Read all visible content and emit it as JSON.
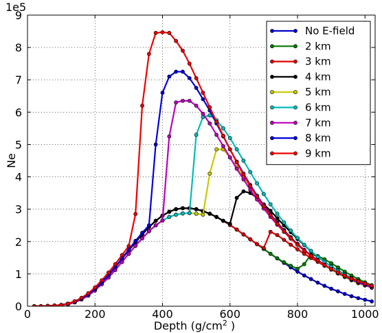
{
  "chart_data": {
    "type": "line",
    "xlabel_main": "Depth (g/cm",
    "xlabel_sup": "2",
    "xlabel_tail": " )",
    "ylabel": "Ne",
    "y_multiplier": "1e5",
    "xlim": [
      0,
      1030
    ],
    "ylim": [
      0,
      9
    ],
    "xticks": [
      0,
      200,
      400,
      600,
      800,
      1000
    ],
    "yticks": [
      0,
      1,
      2,
      3,
      4,
      5,
      6,
      7,
      8,
      9
    ],
    "grid": true,
    "legend_position": "top-right",
    "series": [
      {
        "name": "No E-field",
        "color": "#0000cc",
        "x": [
          20,
          40,
          60,
          80,
          100,
          120,
          140,
          160,
          180,
          200,
          220,
          240,
          260,
          280,
          300,
          320,
          340,
          360,
          380,
          400,
          420,
          440,
          460,
          480,
          500,
          520,
          540,
          560,
          580,
          600,
          620,
          640,
          660,
          680,
          700,
          720,
          740,
          760,
          780,
          800,
          820,
          840,
          860,
          880,
          900,
          920,
          940,
          960,
          980,
          1000,
          1020
        ],
        "y": [
          0.0,
          0.0,
          0.01,
          0.02,
          0.04,
          0.08,
          0.15,
          0.25,
          0.38,
          0.55,
          0.75,
          0.97,
          1.21,
          1.47,
          1.73,
          1.98,
          2.22,
          2.45,
          2.64,
          2.8,
          2.92,
          3.0,
          3.03,
          3.03,
          3.0,
          2.94,
          2.86,
          2.76,
          2.64,
          2.51,
          2.37,
          2.22,
          2.07,
          1.92,
          1.77,
          1.62,
          1.48,
          1.34,
          1.2,
          1.07,
          0.95,
          0.84,
          0.73,
          0.63,
          0.54,
          0.46,
          0.38,
          0.31,
          0.25,
          0.2,
          0.15
        ]
      },
      {
        "name": "2 km",
        "color": "#007a00",
        "x": [
          20,
          40,
          60,
          80,
          100,
          120,
          140,
          160,
          180,
          200,
          220,
          240,
          260,
          280,
          300,
          320,
          340,
          360,
          380,
          400,
          420,
          440,
          460,
          480,
          500,
          520,
          540,
          560,
          580,
          600,
          620,
          640,
          660,
          680,
          700,
          720,
          740,
          760,
          780,
          800,
          820,
          840,
          860,
          880,
          900,
          920,
          940,
          960,
          980,
          1000,
          1020
        ],
        "y": [
          0.0,
          0.0,
          0.01,
          0.02,
          0.04,
          0.08,
          0.15,
          0.25,
          0.38,
          0.55,
          0.75,
          0.97,
          1.21,
          1.47,
          1.73,
          1.98,
          2.22,
          2.45,
          2.64,
          2.8,
          2.92,
          3.0,
          3.03,
          3.03,
          3.0,
          2.94,
          2.86,
          2.76,
          2.64,
          2.51,
          2.37,
          2.22,
          2.07,
          1.92,
          1.77,
          1.62,
          1.48,
          1.36,
          1.25,
          1.16,
          1.3,
          1.6,
          1.55,
          1.45,
          1.33,
          1.2,
          1.07,
          0.95,
          0.84,
          0.74,
          0.65
        ]
      },
      {
        "name": "3 km",
        "color": "#dd0000",
        "x": [
          20,
          40,
          60,
          80,
          100,
          120,
          140,
          160,
          180,
          200,
          220,
          240,
          260,
          280,
          300,
          320,
          340,
          360,
          380,
          400,
          420,
          440,
          460,
          480,
          500,
          520,
          540,
          560,
          580,
          600,
          620,
          640,
          660,
          680,
          700,
          720,
          740,
          760,
          780,
          800,
          820,
          840,
          860,
          880,
          900,
          920,
          940,
          960,
          980,
          1000,
          1020
        ],
        "y": [
          0.0,
          0.0,
          0.01,
          0.02,
          0.04,
          0.08,
          0.15,
          0.25,
          0.38,
          0.55,
          0.75,
          0.97,
          1.21,
          1.47,
          1.73,
          1.98,
          2.22,
          2.45,
          2.64,
          2.8,
          2.92,
          3.0,
          3.03,
          3.03,
          3.0,
          2.94,
          2.86,
          2.76,
          2.64,
          2.51,
          2.37,
          2.22,
          2.07,
          1.92,
          1.8,
          2.3,
          2.2,
          2.05,
          1.9,
          1.76,
          1.62,
          1.49,
          1.37,
          1.25,
          1.14,
          1.03,
          0.93,
          0.84,
          0.75,
          0.67,
          0.6
        ]
      },
      {
        "name": "4 km",
        "color": "#000000",
        "x": [
          20,
          40,
          60,
          80,
          100,
          120,
          140,
          160,
          180,
          200,
          220,
          240,
          260,
          280,
          300,
          320,
          340,
          360,
          380,
          400,
          420,
          440,
          460,
          480,
          500,
          520,
          540,
          560,
          580,
          600,
          620,
          640,
          660,
          680,
          700,
          720,
          740,
          760,
          780,
          800,
          820,
          840,
          860,
          880,
          900,
          920,
          940,
          960,
          980,
          1000,
          1020
        ],
        "y": [
          0.0,
          0.0,
          0.01,
          0.02,
          0.04,
          0.08,
          0.15,
          0.25,
          0.38,
          0.55,
          0.75,
          0.97,
          1.21,
          1.47,
          1.73,
          1.98,
          2.22,
          2.45,
          2.64,
          2.8,
          2.92,
          3.0,
          3.03,
          3.03,
          3.0,
          2.94,
          2.86,
          2.76,
          2.64,
          2.55,
          3.35,
          3.55,
          3.5,
          3.35,
          3.15,
          2.95,
          2.72,
          2.5,
          2.29,
          2.08,
          1.89,
          1.7,
          1.53,
          1.37,
          1.23,
          1.1,
          0.98,
          0.87,
          0.78,
          0.69,
          0.62
        ]
      },
      {
        "name": "5 km",
        "color": "#c8c800",
        "x": [
          20,
          40,
          60,
          80,
          100,
          120,
          140,
          160,
          180,
          200,
          220,
          240,
          260,
          280,
          300,
          320,
          340,
          360,
          380,
          400,
          420,
          440,
          460,
          480,
          500,
          520,
          540,
          560,
          580,
          600,
          620,
          640,
          660,
          680,
          700,
          720,
          740,
          760,
          780,
          800,
          820,
          840,
          860,
          880,
          900,
          920,
          940,
          960,
          980,
          1000,
          1020
        ],
        "y": [
          0.0,
          0.0,
          0.0,
          0.01,
          0.03,
          0.06,
          0.12,
          0.21,
          0.33,
          0.49,
          0.68,
          0.89,
          1.12,
          1.37,
          1.62,
          1.87,
          2.1,
          2.32,
          2.5,
          2.65,
          2.76,
          2.83,
          2.87,
          2.88,
          2.86,
          2.83,
          4.1,
          4.85,
          4.85,
          4.6,
          4.3,
          4.0,
          3.7,
          3.4,
          3.12,
          2.85,
          2.6,
          2.36,
          2.14,
          1.93,
          1.74,
          1.57,
          1.41,
          1.26,
          1.13,
          1.01,
          0.9,
          0.8,
          0.71,
          0.64,
          0.57
        ]
      },
      {
        "name": "6 km",
        "color": "#00bbbb",
        "x": [
          20,
          40,
          60,
          80,
          100,
          120,
          140,
          160,
          180,
          200,
          220,
          240,
          260,
          280,
          300,
          320,
          340,
          360,
          380,
          400,
          420,
          440,
          460,
          480,
          500,
          520,
          540,
          560,
          580,
          600,
          620,
          640,
          660,
          680,
          700,
          720,
          740,
          760,
          780,
          800,
          820,
          840,
          860,
          880,
          900,
          920,
          940,
          960,
          980,
          1000,
          1020
        ],
        "y": [
          0.0,
          0.0,
          0.0,
          0.01,
          0.03,
          0.06,
          0.12,
          0.21,
          0.33,
          0.49,
          0.68,
          0.89,
          1.12,
          1.37,
          1.62,
          1.87,
          2.1,
          2.32,
          2.5,
          2.65,
          2.76,
          2.83,
          2.87,
          2.88,
          5.3,
          5.85,
          5.9,
          5.75,
          5.5,
          5.2,
          4.85,
          4.5,
          4.15,
          3.8,
          3.47,
          3.15,
          2.86,
          2.59,
          2.34,
          2.11,
          1.9,
          1.71,
          1.53,
          1.37,
          1.22,
          1.09,
          0.97,
          0.86,
          0.76,
          0.68,
          0.6
        ]
      },
      {
        "name": "7 km",
        "color": "#bb00bb",
        "x": [
          20,
          40,
          60,
          80,
          100,
          120,
          140,
          160,
          180,
          200,
          220,
          240,
          260,
          280,
          300,
          320,
          340,
          360,
          380,
          400,
          420,
          440,
          460,
          480,
          500,
          520,
          540,
          560,
          580,
          600,
          620,
          640,
          660,
          680,
          700,
          720,
          740,
          760,
          780,
          800,
          820,
          840,
          860,
          880,
          900,
          920,
          940,
          960,
          980,
          1000,
          1020
        ],
        "y": [
          0.0,
          0.0,
          0.0,
          0.01,
          0.03,
          0.06,
          0.12,
          0.21,
          0.33,
          0.49,
          0.68,
          0.89,
          1.12,
          1.37,
          1.62,
          1.87,
          2.1,
          2.32,
          2.5,
          2.65,
          5.25,
          6.3,
          6.35,
          6.35,
          6.2,
          5.95,
          5.65,
          5.3,
          4.95,
          4.6,
          4.25,
          3.92,
          3.6,
          3.3,
          3.02,
          2.76,
          2.52,
          2.3,
          2.09,
          1.9,
          1.73,
          1.57,
          1.42,
          1.28,
          1.15,
          1.03,
          0.92,
          0.82,
          0.73,
          0.65,
          0.58
        ]
      },
      {
        "name": "8 km",
        "color": "#0000dd",
        "x": [
          20,
          40,
          60,
          80,
          100,
          120,
          140,
          160,
          180,
          200,
          220,
          240,
          260,
          280,
          300,
          320,
          340,
          360,
          380,
          400,
          420,
          440,
          460,
          480,
          500,
          520,
          540,
          560,
          580,
          600,
          620,
          640,
          660,
          680,
          700,
          720,
          740,
          760,
          780,
          800,
          820,
          840,
          860,
          880,
          900,
          920,
          940,
          960,
          980,
          1000,
          1020
        ],
        "y": [
          0.0,
          0.0,
          0.01,
          0.02,
          0.04,
          0.08,
          0.14,
          0.23,
          0.36,
          0.53,
          0.73,
          0.96,
          1.21,
          1.48,
          1.75,
          2.02,
          2.27,
          2.5,
          5.0,
          6.6,
          7.1,
          7.25,
          7.25,
          7.05,
          6.75,
          6.4,
          6.05,
          5.65,
          5.25,
          4.85,
          4.47,
          4.1,
          3.75,
          3.42,
          3.12,
          2.84,
          2.58,
          2.34,
          2.12,
          1.92,
          1.74,
          1.57,
          1.42,
          1.28,
          1.15,
          1.03,
          0.93,
          0.84,
          0.75,
          0.68,
          0.61
        ]
      },
      {
        "name": "9 km",
        "color": "#ee0000",
        "x": [
          20,
          40,
          60,
          80,
          100,
          120,
          140,
          160,
          180,
          200,
          220,
          240,
          260,
          280,
          300,
          320,
          340,
          360,
          380,
          400,
          420,
          440,
          460,
          480,
          500,
          520,
          540,
          560,
          580,
          600,
          620,
          640,
          660,
          680,
          700,
          720,
          740,
          760,
          780,
          800,
          820,
          840,
          860,
          880,
          900,
          920,
          940,
          960,
          980,
          1000,
          1020
        ],
        "y": [
          0.0,
          0.0,
          0.01,
          0.02,
          0.04,
          0.08,
          0.15,
          0.26,
          0.4,
          0.58,
          0.8,
          1.04,
          1.3,
          1.58,
          1.86,
          2.85,
          6.2,
          7.8,
          8.45,
          8.47,
          8.45,
          8.2,
          7.9,
          7.5,
          7.05,
          6.6,
          6.15,
          5.7,
          5.27,
          4.85,
          4.45,
          4.07,
          3.72,
          3.39,
          3.09,
          2.81,
          2.55,
          2.31,
          2.1,
          1.9,
          1.72,
          1.56,
          1.41,
          1.27,
          1.15,
          1.04,
          0.94,
          0.85,
          0.77,
          0.7,
          0.63
        ]
      }
    ]
  }
}
